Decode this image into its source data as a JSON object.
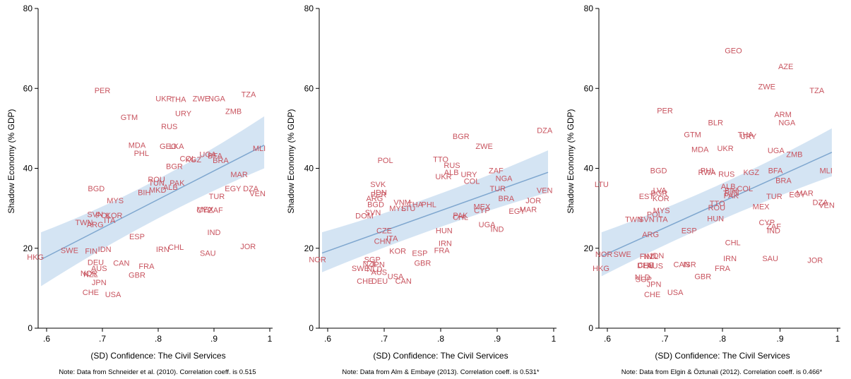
{
  "chart_data": [
    {
      "type": "scatter",
      "xlabel": "(SD) Confidence: The Civil Services",
      "ylabel": "Shadow Economy (% GDP)",
      "note": "Note: Data from Schneider et al. (2010). Correlation coeff. is 0.515",
      "xlim": [
        0.58,
        1.0
      ],
      "ylim": [
        0,
        80
      ],
      "xticks": [
        ".6",
        ".7",
        ".8",
        ".9",
        "1"
      ],
      "yticks": [
        "0",
        "20",
        "40",
        "60",
        "80"
      ],
      "grid": false,
      "fit": {
        "x": [
          0.59,
          0.99
        ],
        "y": [
          17.2,
          45.8
        ],
        "band_lo": [
          10.5,
          40.0
        ],
        "band_hi": [
          24.0,
          53.0
        ]
      },
      "points": [
        {
          "label": "PER",
          "x": 0.7,
          "y": 59.5
        },
        {
          "label": "UKR",
          "x": 0.81,
          "y": 57.5
        },
        {
          "label": "THA",
          "x": 0.836,
          "y": 57.3
        },
        {
          "label": "ZWE",
          "x": 0.877,
          "y": 57.5
        },
        {
          "label": "NGA",
          "x": 0.905,
          "y": 57.5
        },
        {
          "label": "TZA",
          "x": 0.962,
          "y": 58.5
        },
        {
          "label": "GTM",
          "x": 0.748,
          "y": 52.8
        },
        {
          "label": "URY",
          "x": 0.845,
          "y": 53.8
        },
        {
          "label": "ZMB",
          "x": 0.935,
          "y": 54.3
        },
        {
          "label": "RUS",
          "x": 0.82,
          "y": 50.5
        },
        {
          "label": "MDA",
          "x": 0.762,
          "y": 45.8
        },
        {
          "label": "GEO",
          "x": 0.818,
          "y": 45.6
        },
        {
          "label": "LKA",
          "x": 0.833,
          "y": 45.6
        },
        {
          "label": "PHL",
          "x": 0.77,
          "y": 43.8
        },
        {
          "label": "UGA",
          "x": 0.889,
          "y": 43.5
        },
        {
          "label": "BFA",
          "x": 0.902,
          "y": 43.2
        },
        {
          "label": "COL",
          "x": 0.853,
          "y": 42.5
        },
        {
          "label": "KGZ",
          "x": 0.863,
          "y": 42.2
        },
        {
          "label": "BRA",
          "x": 0.912,
          "y": 42.0
        },
        {
          "label": "MLI",
          "x": 0.981,
          "y": 45.0
        },
        {
          "label": "BGR",
          "x": 0.829,
          "y": 40.5
        },
        {
          "label": "MAR",
          "x": 0.945,
          "y": 38.5
        },
        {
          "label": "BGD",
          "x": 0.689,
          "y": 35.0
        },
        {
          "label": "ROU",
          "x": 0.797,
          "y": 37.3
        },
        {
          "label": "TUN",
          "x": 0.797,
          "y": 36.4
        },
        {
          "label": "PAK",
          "x": 0.834,
          "y": 36.4
        },
        {
          "label": "ALB",
          "x": 0.822,
          "y": 35.3
        },
        {
          "label": "MKD",
          "x": 0.799,
          "y": 34.6
        },
        {
          "label": "BIH",
          "x": 0.775,
          "y": 34.0
        },
        {
          "label": "EGY",
          "x": 0.934,
          "y": 35.0
        },
        {
          "label": "DZA",
          "x": 0.966,
          "y": 35.0
        },
        {
          "label": "VEN",
          "x": 0.978,
          "y": 33.7
        },
        {
          "label": "MYS",
          "x": 0.723,
          "y": 32.0
        },
        {
          "label": "TUR",
          "x": 0.905,
          "y": 33.0
        },
        {
          "label": "MEX",
          "x": 0.884,
          "y": 29.8
        },
        {
          "label": "CYP",
          "x": 0.883,
          "y": 29.6
        },
        {
          "label": "ZAF",
          "x": 0.903,
          "y": 29.6
        },
        {
          "label": "SVN",
          "x": 0.687,
          "y": 28.5
        },
        {
          "label": "POL",
          "x": 0.702,
          "y": 28.3
        },
        {
          "label": "KOR",
          "x": 0.721,
          "y": 28.3
        },
        {
          "label": "TWN",
          "x": 0.667,
          "y": 26.5
        },
        {
          "label": "ARG",
          "x": 0.687,
          "y": 26.0
        },
        {
          "label": "ITA",
          "x": 0.713,
          "y": 27.0
        },
        {
          "label": "IND",
          "x": 0.9,
          "y": 24.0
        },
        {
          "label": "ESP",
          "x": 0.762,
          "y": 23.0
        },
        {
          "label": "JOR",
          "x": 0.961,
          "y": 20.5
        },
        {
          "label": "SWE",
          "x": 0.641,
          "y": 19.5
        },
        {
          "label": "FIN",
          "x": 0.68,
          "y": 19.3
        },
        {
          "label": "IDN",
          "x": 0.704,
          "y": 19.8
        },
        {
          "label": "IRN",
          "x": 0.808,
          "y": 19.8
        },
        {
          "label": "CHL",
          "x": 0.832,
          "y": 20.3
        },
        {
          "label": "SAU",
          "x": 0.889,
          "y": 18.8
        },
        {
          "label": "HKG",
          "x": 0.58,
          "y": 17.8
        },
        {
          "label": "DEU",
          "x": 0.688,
          "y": 16.5
        },
        {
          "label": "CAN",
          "x": 0.734,
          "y": 16.3
        },
        {
          "label": "AUS",
          "x": 0.694,
          "y": 15.0
        },
        {
          "label": "FRA",
          "x": 0.779,
          "y": 15.5
        },
        {
          "label": "NOR",
          "x": 0.676,
          "y": 13.8
        },
        {
          "label": "NZL",
          "x": 0.679,
          "y": 13.5
        },
        {
          "label": "GBR",
          "x": 0.762,
          "y": 13.3
        },
        {
          "label": "JPN",
          "x": 0.694,
          "y": 11.5
        },
        {
          "label": "CHE",
          "x": 0.679,
          "y": 9.0
        },
        {
          "label": "USA",
          "x": 0.719,
          "y": 8.5
        }
      ]
    },
    {
      "type": "scatter",
      "xlabel": "(SD) Confidence: The Civil Services",
      "ylabel": "Shadow Economy (% GDP)",
      "note": "Note: Data from Alm & Embaye (2013). Correlation coeff. is 0.531*",
      "xlim": [
        0.58,
        1.0
      ],
      "ylim": [
        0,
        80
      ],
      "xticks": [
        ".6",
        ".7",
        ".8",
        ".9",
        "1"
      ],
      "yticks": [
        "0",
        "20",
        "40",
        "60",
        "80"
      ],
      "grid": false,
      "fit": {
        "x": [
          0.59,
          0.99
        ],
        "y": [
          18.8,
          39.0
        ],
        "band_lo": [
          14.0,
          34.0
        ],
        "band_hi": [
          24.0,
          44.5
        ]
      },
      "points": [
        {
          "label": "DZA",
          "x": 0.984,
          "y": 49.5
        },
        {
          "label": "BGR",
          "x": 0.836,
          "y": 48.0
        },
        {
          "label": "ZWE",
          "x": 0.877,
          "y": 45.6
        },
        {
          "label": "POL",
          "x": 0.702,
          "y": 42.0
        },
        {
          "label": "TTO",
          "x": 0.8,
          "y": 42.3
        },
        {
          "label": "RUS",
          "x": 0.82,
          "y": 40.8
        },
        {
          "label": "ALB",
          "x": 0.819,
          "y": 39.0
        },
        {
          "label": "UKR",
          "x": 0.805,
          "y": 38.0
        },
        {
          "label": "URY",
          "x": 0.85,
          "y": 38.5
        },
        {
          "label": "ZAF",
          "x": 0.898,
          "y": 39.5
        },
        {
          "label": "NGA",
          "x": 0.912,
          "y": 37.5
        },
        {
          "label": "COL",
          "x": 0.855,
          "y": 36.8
        },
        {
          "label": "TUR",
          "x": 0.901,
          "y": 35.0
        },
        {
          "label": "VEN",
          "x": 0.984,
          "y": 34.5
        },
        {
          "label": "SVK",
          "x": 0.689,
          "y": 36.0
        },
        {
          "label": "IDN",
          "x": 0.693,
          "y": 34.0
        },
        {
          "label": "PER",
          "x": 0.69,
          "y": 33.5
        },
        {
          "label": "ARG",
          "x": 0.683,
          "y": 32.5
        },
        {
          "label": "BGD",
          "x": 0.685,
          "y": 31.0
        },
        {
          "label": "VNM",
          "x": 0.732,
          "y": 31.5
        },
        {
          "label": "THA",
          "x": 0.755,
          "y": 31.0
        },
        {
          "label": "PHL",
          "x": 0.779,
          "y": 31.0
        },
        {
          "label": "MYS",
          "x": 0.724,
          "y": 30.0
        },
        {
          "label": "LTU",
          "x": 0.743,
          "y": 30.0
        },
        {
          "label": "BRA",
          "x": 0.916,
          "y": 32.5
        },
        {
          "label": "JOR",
          "x": 0.964,
          "y": 32.0
        },
        {
          "label": "MEX",
          "x": 0.873,
          "y": 30.5
        },
        {
          "label": "CYP",
          "x": 0.873,
          "y": 29.5
        },
        {
          "label": "MAR",
          "x": 0.955,
          "y": 29.8
        },
        {
          "label": "EGY",
          "x": 0.935,
          "y": 29.3
        },
        {
          "label": "SVN",
          "x": 0.68,
          "y": 29.0
        },
        {
          "label": "DOM",
          "x": 0.665,
          "y": 28.2
        },
        {
          "label": "PAK",
          "x": 0.835,
          "y": 28.3
        },
        {
          "label": "CHL",
          "x": 0.835,
          "y": 27.8
        },
        {
          "label": "UGA",
          "x": 0.882,
          "y": 26.0
        },
        {
          "label": "IND",
          "x": 0.9,
          "y": 24.8
        },
        {
          "label": "CZE",
          "x": 0.7,
          "y": 24.5
        },
        {
          "label": "HUN",
          "x": 0.806,
          "y": 24.5
        },
        {
          "label": "CHN",
          "x": 0.697,
          "y": 21.8
        },
        {
          "label": "ITA",
          "x": 0.714,
          "y": 22.5
        },
        {
          "label": "IRN",
          "x": 0.808,
          "y": 21.3
        },
        {
          "label": "KOR",
          "x": 0.724,
          "y": 19.3
        },
        {
          "label": "ESP",
          "x": 0.763,
          "y": 18.8
        },
        {
          "label": "FRA",
          "x": 0.802,
          "y": 19.5
        },
        {
          "label": "NOR",
          "x": 0.582,
          "y": 17.2
        },
        {
          "label": "SGP",
          "x": 0.679,
          "y": 17.2
        },
        {
          "label": "NZL",
          "x": 0.675,
          "y": 16.2
        },
        {
          "label": "JPN",
          "x": 0.688,
          "y": 16.0
        },
        {
          "label": "GBR",
          "x": 0.768,
          "y": 16.3
        },
        {
          "label": "SWE",
          "x": 0.658,
          "y": 15.0
        },
        {
          "label": "NLD",
          "x": 0.683,
          "y": 14.8
        },
        {
          "label": "AUS",
          "x": 0.691,
          "y": 14.0
        },
        {
          "label": "USA",
          "x": 0.72,
          "y": 13.0
        },
        {
          "label": "CHE",
          "x": 0.666,
          "y": 11.8
        },
        {
          "label": "DEU",
          "x": 0.692,
          "y": 11.8
        },
        {
          "label": "CAN",
          "x": 0.734,
          "y": 11.8
        }
      ]
    },
    {
      "type": "scatter",
      "xlabel": "(SD) Confidence: The Civil Services",
      "ylabel": "Shadow Economy (% GDP)",
      "note": "Note: Data from Elgin & Öztunali (2012). Correlation coeff. is 0.466*",
      "xlim": [
        0.58,
        1.0
      ],
      "ylim": [
        0,
        80
      ],
      "xticks": [
        ".6",
        ".7",
        ".8",
        ".9",
        "1"
      ],
      "yticks": [
        "0",
        "20",
        "40",
        "60",
        "80"
      ],
      "grid": false,
      "fit": {
        "x": [
          0.59,
          0.99
        ],
        "y": [
          18.0,
          44.0
        ],
        "band_lo": [
          13.0,
          38.0
        ],
        "band_hi": [
          24.0,
          50.0
        ]
      },
      "points": [
        {
          "label": "GEO",
          "x": 0.819,
          "y": 69.5
        },
        {
          "label": "AZE",
          "x": 0.91,
          "y": 65.5
        },
        {
          "label": "ZWE",
          "x": 0.877,
          "y": 60.5
        },
        {
          "label": "TZA",
          "x": 0.964,
          "y": 59.5
        },
        {
          "label": "PER",
          "x": 0.7,
          "y": 54.5
        },
        {
          "label": "ARM",
          "x": 0.905,
          "y": 53.5
        },
        {
          "label": "BLR",
          "x": 0.788,
          "y": 51.5
        },
        {
          "label": "NGA",
          "x": 0.912,
          "y": 51.5
        },
        {
          "label": "GTM",
          "x": 0.748,
          "y": 48.5
        },
        {
          "label": "THA",
          "x": 0.84,
          "y": 48.5
        },
        {
          "label": "URY",
          "x": 0.845,
          "y": 48.0
        },
        {
          "label": "MDA",
          "x": 0.761,
          "y": 44.8
        },
        {
          "label": "UKR",
          "x": 0.805,
          "y": 45.0
        },
        {
          "label": "UGA",
          "x": 0.893,
          "y": 44.5
        },
        {
          "label": "ZMB",
          "x": 0.925,
          "y": 43.5
        },
        {
          "label": "BGD",
          "x": 0.689,
          "y": 39.5
        },
        {
          "label": "PHL",
          "x": 0.775,
          "y": 39.5
        },
        {
          "label": "RWA",
          "x": 0.773,
          "y": 39.0
        },
        {
          "label": "RUS",
          "x": 0.807,
          "y": 38.6
        },
        {
          "label": "KGZ",
          "x": 0.85,
          "y": 39.0
        },
        {
          "label": "BFA",
          "x": 0.892,
          "y": 39.5
        },
        {
          "label": "MLI",
          "x": 0.98,
          "y": 39.5
        },
        {
          "label": "LTU",
          "x": 0.59,
          "y": 36.0
        },
        {
          "label": "BRA",
          "x": 0.906,
          "y": 37.0
        },
        {
          "label": "ALB",
          "x": 0.81,
          "y": 35.5
        },
        {
          "label": "COL",
          "x": 0.839,
          "y": 35.0
        },
        {
          "label": "LVA",
          "x": 0.691,
          "y": 34.5
        },
        {
          "label": "BIH",
          "x": 0.815,
          "y": 34.5
        },
        {
          "label": "TUN",
          "x": 0.815,
          "y": 33.8
        },
        {
          "label": "PAK",
          "x": 0.815,
          "y": 33.2
        },
        {
          "label": "BGR",
          "x": 0.69,
          "y": 33.8
        },
        {
          "label": "EST",
          "x": 0.668,
          "y": 33.0
        },
        {
          "label": "KOR",
          "x": 0.693,
          "y": 32.5
        },
        {
          "label": "TUR",
          "x": 0.89,
          "y": 33.0
        },
        {
          "label": "EGY",
          "x": 0.93,
          "y": 33.5
        },
        {
          "label": "MAR",
          "x": 0.943,
          "y": 33.8
        },
        {
          "label": "DZA",
          "x": 0.97,
          "y": 31.5
        },
        {
          "label": "VEN",
          "x": 0.981,
          "y": 30.8
        },
        {
          "label": "TTO",
          "x": 0.791,
          "y": 31.3
        },
        {
          "label": "ROU",
          "x": 0.79,
          "y": 30.2
        },
        {
          "label": "MEX",
          "x": 0.867,
          "y": 30.5
        },
        {
          "label": "MYS",
          "x": 0.694,
          "y": 29.5
        },
        {
          "label": "POL",
          "x": 0.682,
          "y": 28.5
        },
        {
          "label": "TWN",
          "x": 0.646,
          "y": 27.3
        },
        {
          "label": "SVN",
          "x": 0.668,
          "y": 27.3
        },
        {
          "label": "ITA",
          "x": 0.695,
          "y": 27.3
        },
        {
          "label": "HUN",
          "x": 0.788,
          "y": 27.5
        },
        {
          "label": "CYP",
          "x": 0.877,
          "y": 26.5
        },
        {
          "label": "ZAF",
          "x": 0.889,
          "y": 25.5
        },
        {
          "label": "IND",
          "x": 0.889,
          "y": 24.5
        },
        {
          "label": "ESP",
          "x": 0.742,
          "y": 24.5
        },
        {
          "label": "ARG",
          "x": 0.675,
          "y": 23.5
        },
        {
          "label": "CHL",
          "x": 0.818,
          "y": 21.5
        },
        {
          "label": "NOR",
          "x": 0.594,
          "y": 18.5
        },
        {
          "label": "SWE",
          "x": 0.626,
          "y": 18.5
        },
        {
          "label": "FIN",
          "x": 0.667,
          "y": 18.0
        },
        {
          "label": "IDN",
          "x": 0.687,
          "y": 18.2
        },
        {
          "label": "NZL",
          "x": 0.676,
          "y": 18.0
        },
        {
          "label": "IRN",
          "x": 0.813,
          "y": 17.5
        },
        {
          "label": "SAU",
          "x": 0.883,
          "y": 17.5
        },
        {
          "label": "JOR",
          "x": 0.961,
          "y": 17.0
        },
        {
          "label": "CHE",
          "x": 0.667,
          "y": 15.8
        },
        {
          "label": "DEU",
          "x": 0.666,
          "y": 15.7
        },
        {
          "label": "AUS",
          "x": 0.683,
          "y": 15.6
        },
        {
          "label": "CAN",
          "x": 0.729,
          "y": 16.0
        },
        {
          "label": "ISR",
          "x": 0.743,
          "y": 16.0
        },
        {
          "label": "FRA",
          "x": 0.8,
          "y": 15.0
        },
        {
          "label": "HKG",
          "x": 0.589,
          "y": 15.0
        },
        {
          "label": "GBR",
          "x": 0.766,
          "y": 13.0
        },
        {
          "label": "NLD",
          "x": 0.661,
          "y": 12.8
        },
        {
          "label": "SGP",
          "x": 0.663,
          "y": 12.3
        },
        {
          "label": "JPN",
          "x": 0.681,
          "y": 11.0
        },
        {
          "label": "USA",
          "x": 0.718,
          "y": 9.0
        },
        {
          "label": "CHE",
          "x": 0.678,
          "y": 8.5
        }
      ]
    }
  ]
}
